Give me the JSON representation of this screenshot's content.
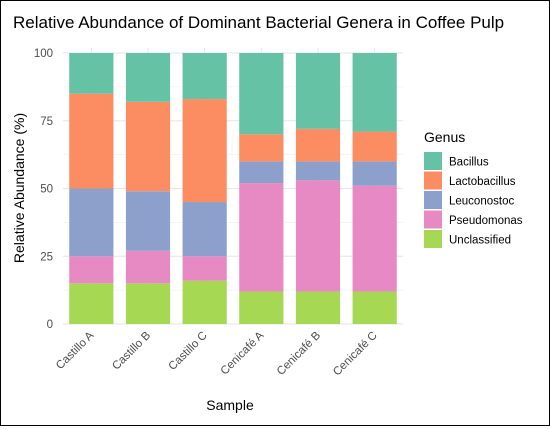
{
  "chart_data": {
    "type": "bar",
    "stacked": true,
    "title": "Relative Abundance of Dominant Bacterial Genera in Coffee Pulp",
    "xlabel": "Sample",
    "ylabel": "Relative Abundance (%)",
    "ylim": [
      0,
      100
    ],
    "yticks": [
      0,
      25,
      50,
      75,
      100
    ],
    "categories": [
      "Castillo A",
      "Castillo B",
      "Castillo C",
      "Cenicafé A",
      "Cenicafé B",
      "Cenicafé C"
    ],
    "legend_title": "Genus",
    "legend_position": "right",
    "grid": true,
    "series": [
      {
        "name": "Unclassified",
        "color": "#a6d854",
        "values": [
          15,
          15,
          16,
          12,
          12,
          12
        ]
      },
      {
        "name": "Pseudomonas",
        "color": "#e78ac3",
        "values": [
          10,
          12,
          9,
          40,
          41,
          39
        ]
      },
      {
        "name": "Leuconostoc",
        "color": "#8da0cb",
        "values": [
          25,
          22,
          20,
          8,
          7,
          9
        ]
      },
      {
        "name": "Lactobacillus",
        "color": "#fc8d62",
        "values": [
          35,
          33,
          38,
          10,
          12,
          11
        ]
      },
      {
        "name": "Bacillus",
        "color": "#66c2a5",
        "values": [
          15,
          18,
          17,
          30,
          28,
          29
        ]
      }
    ],
    "legend_order": [
      "Bacillus",
      "Lactobacillus",
      "Leuconostoc",
      "Pseudomonas",
      "Unclassified"
    ]
  }
}
